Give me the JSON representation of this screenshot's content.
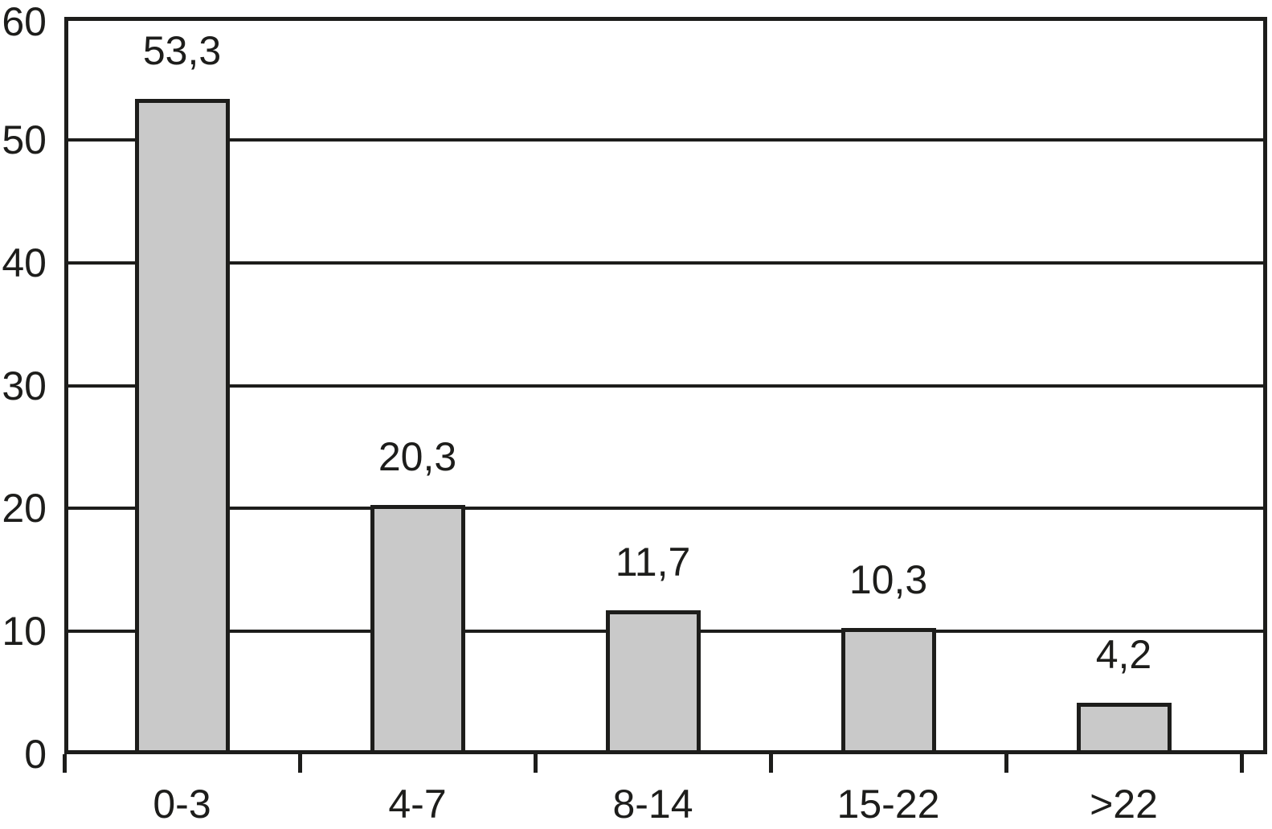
{
  "chart_data": {
    "type": "bar",
    "title": "",
    "xlabel": "",
    "ylabel": "",
    "categories": [
      "0-3",
      "4-7",
      "8-14",
      "15-22",
      ">22"
    ],
    "values": [
      53.3,
      20.3,
      11.7,
      10.3,
      4.2
    ],
    "value_labels": [
      "53,3",
      "20,3",
      "11,7",
      "10,3",
      "4,2"
    ],
    "ylim": [
      0,
      60
    ],
    "yticks": [
      0,
      10,
      20,
      30,
      40,
      50,
      60
    ],
    "ytick_labels": [
      "0",
      "10",
      "20",
      "30",
      "40",
      "50",
      "60"
    ],
    "grid": true,
    "legend": false,
    "decimal_separator": ",",
    "colors": {
      "bar_fill": "#c9c9c9",
      "line": "#1d1d1b",
      "text": "#1d1d1b",
      "background": "#ffffff"
    }
  }
}
